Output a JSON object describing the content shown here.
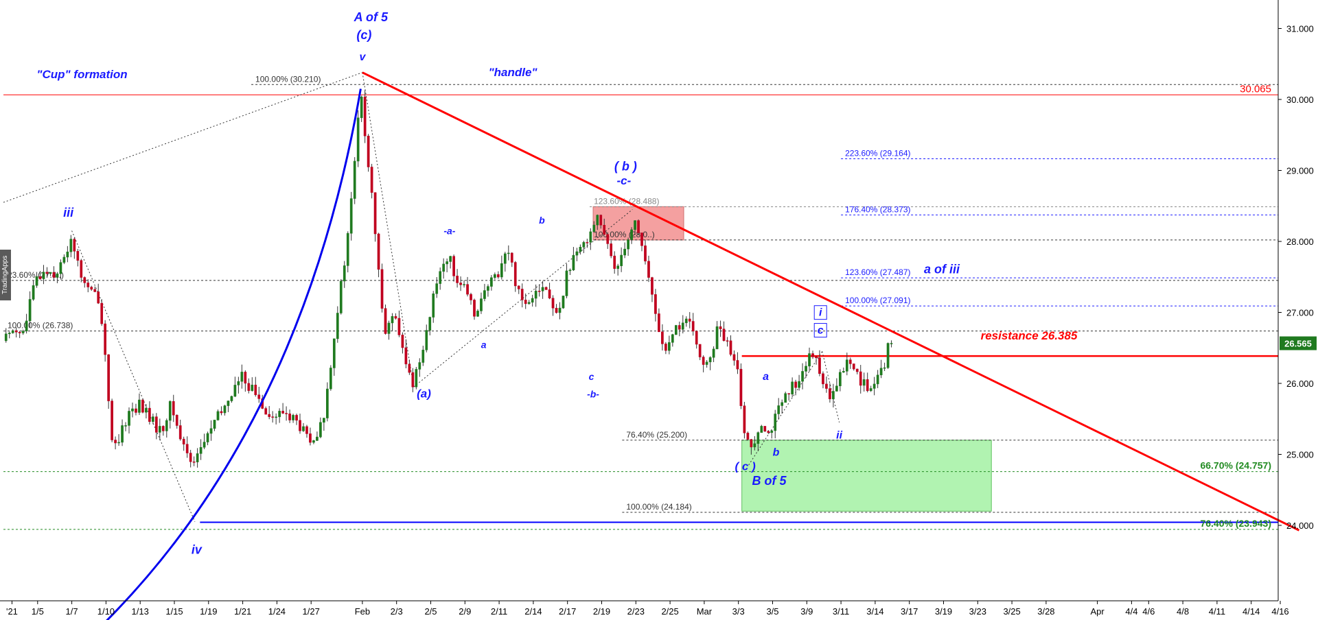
{
  "chart_data": {
    "type": "candlestick",
    "y_axis": {
      "position": "right",
      "range": [
        22.6,
        31.5
      ],
      "ticks": [
        "31.000",
        "30.000",
        "29.000",
        "28.000",
        "27.000",
        "26.000",
        "25.000",
        "24.000"
      ]
    },
    "x_axis": {
      "tick_labels": [
        {
          "label": "'21",
          "x": 0.5
        },
        {
          "label": "1/5",
          "x": 2
        },
        {
          "label": "1/7",
          "x": 4
        },
        {
          "label": "1/10",
          "x": 6
        },
        {
          "label": "1/13",
          "x": 8
        },
        {
          "label": "1/15",
          "x": 10
        },
        {
          "label": "1/19",
          "x": 12
        },
        {
          "label": "1/21",
          "x": 14
        },
        {
          "label": "1/24",
          "x": 16
        },
        {
          "label": "1/27",
          "x": 18
        },
        {
          "label": "Feb",
          "x": 21
        },
        {
          "label": "2/3",
          "x": 23
        },
        {
          "label": "2/5",
          "x": 25
        },
        {
          "label": "2/9",
          "x": 27
        },
        {
          "label": "2/11",
          "x": 29
        },
        {
          "label": "2/14",
          "x": 31
        },
        {
          "label": "2/17",
          "x": 33
        },
        {
          "label": "2/19",
          "x": 35
        },
        {
          "label": "2/23",
          "x": 37
        },
        {
          "label": "2/25",
          "x": 39
        },
        {
          "label": "Mar",
          "x": 41
        },
        {
          "label": "3/3",
          "x": 43
        },
        {
          "label": "3/5",
          "x": 45
        },
        {
          "label": "3/9",
          "x": 47
        },
        {
          "label": "3/11",
          "x": 49
        },
        {
          "label": "3/14",
          "x": 51
        },
        {
          "label": "3/17",
          "x": 53
        },
        {
          "label": "3/19",
          "x": 55
        },
        {
          "label": "3/23",
          "x": 57
        },
        {
          "label": "3/25",
          "x": 59
        },
        {
          "label": "3/28",
          "x": 61
        },
        {
          "label": "Apr",
          "x": 64
        },
        {
          "label": "4/4",
          "x": 66
        },
        {
          "label": "4/6",
          "x": 67
        },
        {
          "label": "4/8",
          "x": 69
        },
        {
          "label": "4/11",
          "x": 71
        },
        {
          "label": "4/14",
          "x": 73
        },
        {
          "label": "4/16",
          "x": 74.7
        }
      ]
    },
    "last_price": "26.565",
    "price_path": [
      [
        0.0,
        26.6
      ],
      [
        0.6,
        26.8
      ],
      [
        1.2,
        26.7
      ],
      [
        1.6,
        27.2
      ],
      [
        2.0,
        27.5
      ],
      [
        2.5,
        27.6
      ],
      [
        3.0,
        27.55
      ],
      [
        3.5,
        27.7
      ],
      [
        4.0,
        28.1
      ],
      [
        4.4,
        27.6
      ],
      [
        5.0,
        27.3
      ],
      [
        5.6,
        27.2
      ],
      [
        6.0,
        26.3
      ],
      [
        6.4,
        25.0
      ],
      [
        6.8,
        25.2
      ],
      [
        7.3,
        25.6
      ],
      [
        8.0,
        25.7
      ],
      [
        8.6,
        25.5
      ],
      [
        9.2,
        25.3
      ],
      [
        9.8,
        25.7
      ],
      [
        10.4,
        25.2
      ],
      [
        11.0,
        24.9
      ],
      [
        11.6,
        25.1
      ],
      [
        12.2,
        25.4
      ],
      [
        12.8,
        25.6
      ],
      [
        13.4,
        25.9
      ],
      [
        14.0,
        26.1
      ],
      [
        14.6,
        25.9
      ],
      [
        15.2,
        25.7
      ],
      [
        15.8,
        25.5
      ],
      [
        16.4,
        25.6
      ],
      [
        17.0,
        25.5
      ],
      [
        17.6,
        25.3
      ],
      [
        18.2,
        25.1
      ],
      [
        18.8,
        25.6
      ],
      [
        19.4,
        26.8
      ],
      [
        19.9,
        27.6
      ],
      [
        20.3,
        28.4
      ],
      [
        20.6,
        29.3
      ],
      [
        20.9,
        30.1
      ],
      [
        21.2,
        29.4
      ],
      [
        21.6,
        28.5
      ],
      [
        22.0,
        27.4
      ],
      [
        22.4,
        26.7
      ],
      [
        22.8,
        27.0
      ],
      [
        23.2,
        26.6
      ],
      [
        23.6,
        26.2
      ],
      [
        24.0,
        26.0
      ],
      [
        24.5,
        26.5
      ],
      [
        25.0,
        27.0
      ],
      [
        25.5,
        27.6
      ],
      [
        26.0,
        27.8
      ],
      [
        26.5,
        27.5
      ],
      [
        27.0,
        27.3
      ],
      [
        27.5,
        27.0
      ],
      [
        28.0,
        27.2
      ],
      [
        28.5,
        27.4
      ],
      [
        29.0,
        27.6
      ],
      [
        29.5,
        27.9
      ],
      [
        30.0,
        27.4
      ],
      [
        30.6,
        27.1
      ],
      [
        31.2,
        27.4
      ],
      [
        31.8,
        27.3
      ],
      [
        32.4,
        26.9
      ],
      [
        33.0,
        27.6
      ],
      [
        33.6,
        27.8
      ],
      [
        34.2,
        28.1
      ],
      [
        34.8,
        28.4
      ],
      [
        35.2,
        28.0
      ],
      [
        35.8,
        27.6
      ],
      [
        36.4,
        28.0
      ],
      [
        37.0,
        28.3
      ],
      [
        37.4,
        27.9
      ],
      [
        37.8,
        27.4
      ],
      [
        38.3,
        26.8
      ],
      [
        38.8,
        26.4
      ],
      [
        39.4,
        26.8
      ],
      [
        40.0,
        26.9
      ],
      [
        40.6,
        26.5
      ],
      [
        41.2,
        26.2
      ],
      [
        41.8,
        26.8
      ],
      [
        42.4,
        26.5
      ],
      [
        43.0,
        26.1
      ],
      [
        43.4,
        25.2
      ],
      [
        43.8,
        25.1
      ],
      [
        44.3,
        25.5
      ],
      [
        44.8,
        25.3
      ],
      [
        45.3,
        25.6
      ],
      [
        45.8,
        25.8
      ],
      [
        46.3,
        26.0
      ],
      [
        46.8,
        26.2
      ],
      [
        47.3,
        26.4
      ],
      [
        47.8,
        26.2
      ],
      [
        48.3,
        25.7
      ],
      [
        48.8,
        26.0
      ],
      [
        49.3,
        26.3
      ],
      [
        49.8,
        26.2
      ],
      [
        50.3,
        26.0
      ],
      [
        50.8,
        25.9
      ],
      [
        51.3,
        26.1
      ],
      [
        51.8,
        26.45
      ]
    ],
    "horizontal_lines": [
      {
        "value": 30.065,
        "color": "#ff0000",
        "style": "solid",
        "label": "30.065",
        "x_start": 0
      },
      {
        "value": 30.21,
        "color": "#333333",
        "style": "dashed",
        "label": "100.00% (30.210)",
        "x_start": 14.5
      },
      {
        "value": 29.164,
        "color": "#1a1aff",
        "style": "dashed",
        "label": "223.60% (29.164)",
        "x_start": 49
      },
      {
        "value": 28.488,
        "color": "#888888",
        "style": "dashed",
        "label": "123.60% (28.488)",
        "x_start": 34.3
      },
      {
        "value": 28.373,
        "color": "#1a1aff",
        "style": "dashed",
        "label": "176.40% (28.373)",
        "x_start": 49
      },
      {
        "value": 28.02,
        "color": "#333333",
        "style": "dashed",
        "label": "100.00% (28.0..)",
        "x_start": 34.3
      },
      {
        "value": 27.487,
        "color": "#1a1aff",
        "style": "dashed",
        "label": "123.60% (27.487)",
        "x_start": 49
      },
      {
        "value": 27.45,
        "color": "#333333",
        "style": "dashed",
        "label": "23.60% (27.4..)",
        "x_start": 0
      },
      {
        "value": 27.091,
        "color": "#1a1aff",
        "style": "dashed",
        "label": "100.00% (27.091)",
        "x_start": 49
      },
      {
        "value": 26.738,
        "color": "#333333",
        "style": "dashed",
        "label": "100.00% (26.738)",
        "x_start": 0
      },
      {
        "value": 26.385,
        "color": "#ff0000",
        "style": "solid",
        "label": "",
        "x_start": 43.2
      },
      {
        "value": 25.2,
        "color": "#333333",
        "style": "dashed",
        "label": "76.40% (25.200)",
        "x_start": 36.2
      },
      {
        "value": 24.757,
        "color": "#228b22",
        "style": "dashed",
        "label": "66.70% (24.757)",
        "x_start": 0
      },
      {
        "value": 24.184,
        "color": "#333333",
        "style": "dashed",
        "label": "100.00% (24.184)",
        "x_start": 36.2
      },
      {
        "value": 24.043,
        "color": "#0000ff",
        "style": "solid",
        "label": "",
        "x_start": 11.5
      },
      {
        "value": 23.943,
        "color": "#228b22",
        "style": "dashed",
        "label": "76.40% (23.943)",
        "x_start": 0
      }
    ],
    "trendline": {
      "from": [
        21.0,
        30.38
      ],
      "to": [
        75.8,
        23.93
      ],
      "color": "#ff0000"
    },
    "zones": [
      {
        "x_range": [
          34.5,
          39.8
        ],
        "y_range": [
          28.02,
          28.49
        ],
        "color": "#f08080"
      },
      {
        "x_range": [
          43.2,
          57.8
        ],
        "y_range": [
          24.2,
          25.2
        ],
        "color": "#90ee90"
      }
    ],
    "annotations": [
      {
        "text": "\"Cup\" formation",
        "x": 4.6,
        "y": 30.3,
        "color": "#1a1aff",
        "size": 17
      },
      {
        "text": "\"handle\"",
        "x": 29.8,
        "y": 30.33,
        "color": "#1a1aff",
        "size": 17
      },
      {
        "text": "A of 5",
        "x": 21.5,
        "y": 31.1,
        "color": "#1a1aff",
        "size": 18
      },
      {
        "text": "(c)",
        "x": 21.1,
        "y": 30.85,
        "color": "#1a1aff",
        "size": 18
      },
      {
        "text": "v",
        "x": 21.0,
        "y": 30.55,
        "color": "#1a1aff",
        "size": 16
      },
      {
        "text": "iii",
        "x": 3.8,
        "y": 28.35,
        "color": "#1a1aff",
        "size": 18
      },
      {
        "text": "iv",
        "x": 11.3,
        "y": 23.6,
        "color": "#1a1aff",
        "size": 18
      },
      {
        "text": "(a)",
        "x": 24.6,
        "y": 25.8,
        "color": "#1a1aff",
        "size": 17
      },
      {
        "text": "-a-",
        "x": 26.1,
        "y": 28.1,
        "color": "#1a1aff",
        "size": 14
      },
      {
        "text": "b",
        "x": 31.5,
        "y": 28.25,
        "color": "#1a1aff",
        "size": 14
      },
      {
        "text": "a",
        "x": 28.1,
        "y": 26.5,
        "color": "#1a1aff",
        "size": 14
      },
      {
        "text": "c",
        "x": 34.4,
        "y": 26.05,
        "color": "#1a1aff",
        "size": 14
      },
      {
        "text": "-b-",
        "x": 34.5,
        "y": 25.8,
        "color": "#1a1aff",
        "size": 14
      },
      {
        "text": "( b )",
        "x": 36.4,
        "y": 29.0,
        "color": "#1a1aff",
        "size": 18
      },
      {
        "text": "-c-",
        "x": 36.3,
        "y": 28.8,
        "color": "#1a1aff",
        "size": 17
      },
      {
        "text": "a",
        "x": 44.6,
        "y": 26.05,
        "color": "#1a1aff",
        "size": 16
      },
      {
        "text": "b",
        "x": 45.2,
        "y": 24.98,
        "color": "#1a1aff",
        "size": 16
      },
      {
        "text": "( c )",
        "x": 43.4,
        "y": 24.78,
        "color": "#1a1aff",
        "size": 17
      },
      {
        "text": "B of 5",
        "x": 44.8,
        "y": 24.57,
        "color": "#1a1aff",
        "size": 18
      },
      {
        "text": "ii",
        "x": 48.9,
        "y": 25.22,
        "color": "#1a1aff",
        "size": 16
      },
      {
        "text": "i",
        "x": 47.8,
        "y": 26.95,
        "color": "#1a1aff",
        "size": 16,
        "boxed": true
      },
      {
        "text": "c",
        "x": 47.8,
        "y": 26.7,
        "color": "#1a1aff",
        "size": 16,
        "boxed": true
      },
      {
        "text": "a of iii",
        "x": 54.9,
        "y": 27.55,
        "color": "#1a1aff",
        "size": 18
      },
      {
        "text": "resistance 26.385",
        "x": 60.0,
        "y": 26.62,
        "color": "#ff0000",
        "size": 17
      }
    ]
  },
  "watermark": "TradingApps"
}
